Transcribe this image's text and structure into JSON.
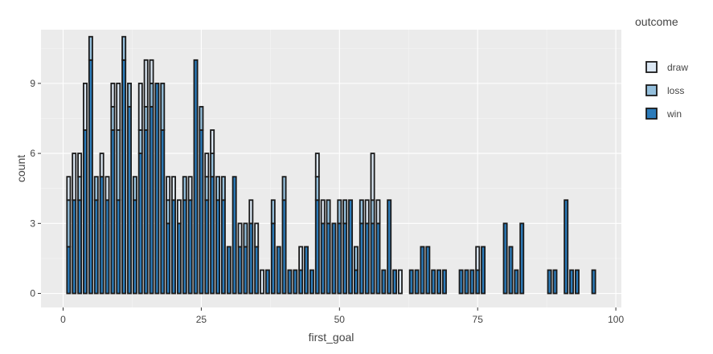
{
  "chart_data": {
    "type": "bar",
    "stacked": true,
    "bin_width": 0.6,
    "title": "",
    "xlabel": "first_goal",
    "ylabel": "count",
    "xlim": [
      -4,
      101
    ],
    "ylim": [
      -0.6,
      11.3
    ],
    "xticks": [
      0,
      25,
      50,
      75,
      100
    ],
    "yticks": [
      0,
      3,
      6,
      9
    ],
    "ytick_labels": [
      "0",
      "3",
      "6",
      "9"
    ],
    "grid": true,
    "background": "#ebebeb",
    "legend": {
      "title": "outcome",
      "position": "right"
    },
    "x": [
      1,
      2,
      3,
      4,
      5,
      6,
      7,
      8,
      9,
      10,
      11,
      12,
      13,
      14,
      15,
      16,
      17,
      18,
      19,
      20,
      21,
      22,
      23,
      24,
      25,
      26,
      27,
      28,
      29,
      30,
      31,
      32,
      33,
      34,
      35,
      36,
      37,
      38,
      39,
      40,
      41,
      42,
      43,
      44,
      45,
      46,
      47,
      48,
      49,
      50,
      51,
      52,
      53,
      54,
      55,
      56,
      57,
      58,
      59,
      60,
      61,
      62,
      63,
      64,
      65,
      66,
      67,
      68,
      69,
      70,
      71,
      72,
      73,
      74,
      75,
      76,
      77,
      78,
      79,
      80,
      81,
      82,
      83,
      84,
      85,
      86,
      87,
      88,
      89,
      90,
      91,
      92,
      93,
      94,
      95,
      96
    ],
    "series": [
      {
        "name": "win",
        "color": "#2b7bba",
        "values": [
          2,
          4,
          4,
          7,
          10,
          4,
          5,
          4,
          7,
          4,
          10,
          8,
          4,
          6,
          7,
          8,
          9,
          7,
          3,
          4,
          3,
          4,
          4,
          10,
          7,
          4,
          5,
          4,
          4,
          2,
          5,
          2,
          2,
          3,
          2,
          0,
          1,
          3,
          2,
          4,
          1,
          1,
          1,
          2,
          1,
          4,
          3,
          3,
          3,
          3,
          3,
          4,
          1,
          3,
          3,
          3,
          3,
          1,
          4,
          1,
          0,
          0,
          1,
          1,
          2,
          2,
          1,
          1,
          1,
          0,
          0,
          1,
          1,
          1,
          1,
          2,
          0,
          0,
          0,
          3,
          2,
          1,
          3,
          0,
          0,
          0,
          0,
          1,
          1,
          0,
          4,
          1,
          1,
          0,
          0,
          1
        ]
      },
      {
        "name": "loss",
        "color": "#94bfdc",
        "values": [
          2,
          0,
          1,
          0,
          1,
          1,
          0,
          0,
          1,
          3,
          1,
          1,
          1,
          1,
          1,
          1,
          0,
          2,
          1,
          0,
          0,
          1,
          0,
          0,
          1,
          1,
          1,
          1,
          1,
          0,
          0,
          0,
          1,
          0,
          0,
          0,
          0,
          1,
          0,
          1,
          0,
          0,
          0,
          0,
          0,
          1,
          0,
          1,
          0,
          1,
          1,
          0,
          1,
          1,
          0,
          1,
          0,
          0,
          0,
          0,
          0,
          0,
          0,
          0,
          0,
          0,
          0,
          0,
          0,
          0,
          0,
          0,
          0,
          0,
          0,
          0,
          0,
          0,
          0,
          0,
          0,
          0,
          0,
          0,
          0,
          0,
          0,
          0,
          0,
          0,
          0,
          0,
          0,
          0,
          0,
          0
        ]
      },
      {
        "name": "draw",
        "color": "#dce8f4",
        "values": [
          1,
          2,
          1,
          2,
          0,
          0,
          1,
          1,
          1,
          2,
          0,
          0,
          0,
          2,
          2,
          1,
          0,
          0,
          1,
          1,
          1,
          0,
          1,
          0,
          0,
          1,
          1,
          0,
          0,
          0,
          0,
          1,
          0,
          1,
          1,
          1,
          0,
          0,
          0,
          0,
          0,
          0,
          1,
          0,
          0,
          1,
          1,
          0,
          0,
          0,
          0,
          0,
          0,
          0,
          1,
          2,
          1,
          0,
          0,
          0,
          1,
          0,
          0,
          0,
          0,
          0,
          0,
          0,
          0,
          0,
          0,
          0,
          0,
          0,
          1,
          0,
          0,
          0,
          0,
          0,
          0,
          0,
          0,
          0,
          0,
          0,
          0,
          0,
          0,
          0,
          0,
          0,
          0,
          0,
          0,
          0
        ]
      }
    ]
  }
}
